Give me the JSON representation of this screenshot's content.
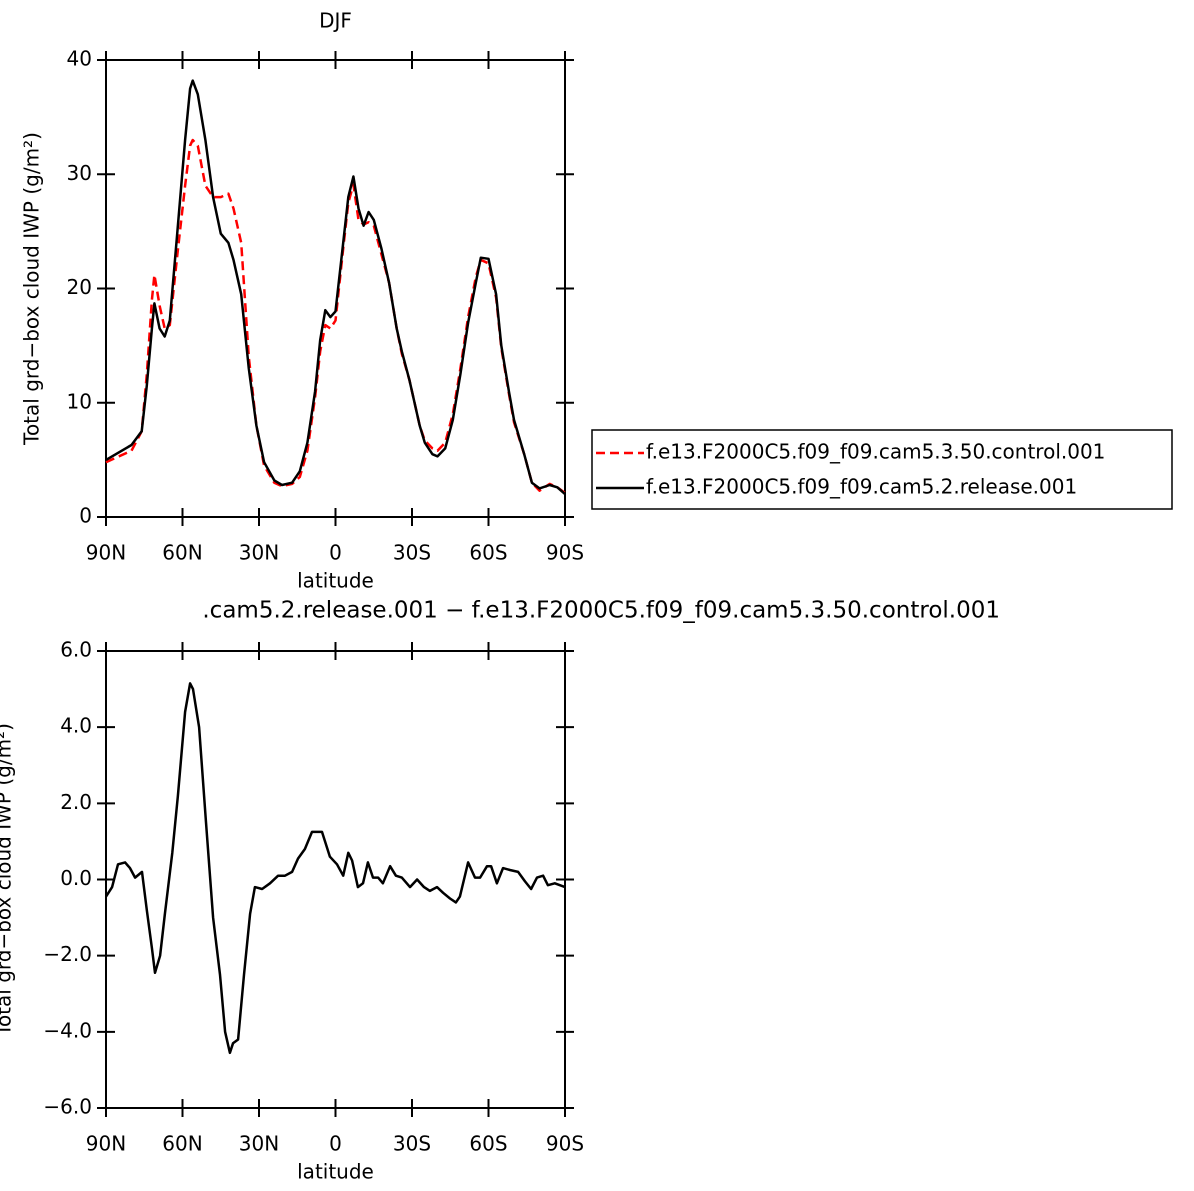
{
  "chart_data": [
    {
      "type": "line",
      "title": "DJF",
      "x_label": "latitude",
      "y_label": "Total grd−box cloud IWP (g/m²)",
      "x": [
        90,
        80,
        76,
        74,
        72,
        71,
        69,
        67,
        65,
        62,
        59,
        57,
        56,
        54,
        51,
        48,
        45,
        42,
        40,
        37,
        34,
        31,
        28,
        24,
        21,
        17,
        14,
        11,
        8,
        6,
        4,
        2,
        0,
        -3,
        -5,
        -7,
        -9,
        -11,
        -13,
        -15,
        -18,
        -21,
        -24,
        -26,
        -29,
        -33,
        -35,
        -38,
        -40,
        -43,
        -46,
        -49,
        -52,
        -55,
        -57,
        -60,
        -63,
        -65,
        -68,
        -70,
        -74,
        -77,
        -80,
        -84,
        -87,
        -90
      ],
      "series": [
        {
          "name": "f.e13.F2000C5.f09_f09.cam5.3.50.control.001",
          "color": "#ff0000",
          "line_style": "dashed",
          "values": [
            4.8,
            5.8,
            7.5,
            12.5,
            19,
            21.2,
            18.5,
            16.5,
            16.8,
            23,
            29,
            32.5,
            33,
            32.5,
            29,
            28,
            28,
            28.3,
            27,
            24,
            14,
            8,
            4.5,
            3.0,
            2.7,
            2.9,
            3.5,
            5.8,
            10.5,
            14.5,
            16.8,
            16.5,
            17.2,
            23.5,
            27.5,
            29.1,
            26,
            25.6,
            25.8,
            25.5,
            23,
            20.5,
            16.5,
            14.3,
            12,
            8,
            6.7,
            6,
            5.8,
            6.5,
            9,
            13,
            17.5,
            21,
            22.5,
            22.2,
            19.2,
            14.8,
            10.8,
            8.3,
            5.5,
            3.0,
            2.3,
            2.9,
            2.6,
            2.1
          ]
        },
        {
          "name": "f.e13.F2000C5.f09_f09.cam5.2.release.001",
          "color": "#000000",
          "line_style": "solid",
          "values": [
            5.0,
            6.3,
            7.5,
            11.5,
            16.5,
            18.7,
            16.5,
            15.8,
            17.2,
            25,
            33,
            37.5,
            38.2,
            37,
            33,
            28,
            24.8,
            24,
            22.5,
            19.5,
            13,
            8,
            4.8,
            3.2,
            2.8,
            3.0,
            4.0,
            6.5,
            11,
            15.5,
            18.1,
            17.5,
            18.0,
            24,
            28,
            29.8,
            27,
            25.5,
            26.7,
            26,
            23.5,
            20.5,
            16.5,
            14.5,
            12,
            8,
            6.5,
            5.5,
            5.3,
            6,
            8.5,
            12.5,
            17,
            20.5,
            22.7,
            22.6,
            19.5,
            15,
            11,
            8.5,
            5.5,
            3.0,
            2.5,
            2.8,
            2.6,
            2.0
          ]
        }
      ],
      "xlim": [
        90,
        -90
      ],
      "xticks": [
        {
          "value": 90,
          "label": "90N"
        },
        {
          "value": 60,
          "label": "60N"
        },
        {
          "value": 30,
          "label": "30N"
        },
        0,
        {
          "value": -30,
          "label": "30S"
        },
        {
          "value": -60,
          "label": "60S"
        },
        {
          "value": -90,
          "label": "90S"
        }
      ],
      "ylim": [
        0,
        40
      ],
      "yticks": [
        0,
        10,
        20,
        30,
        40
      ],
      "legend": "right"
    },
    {
      "type": "line",
      "title": ".cam5.2.release.001 − f.e13.F2000C5.f09_f09.cam5.3.50.control.001",
      "x_label": "latitude",
      "y_label": "Total grd−box cloud IWP (g/m²)",
      "x": [
        90,
        87.6,
        85.3,
        82.5,
        80.6,
        78.6,
        75.9,
        74,
        72,
        70.8,
        68.8,
        66.9,
        64,
        61.8,
        59,
        57,
        55.9,
        53.5,
        50.8,
        48,
        45.3,
        43.3,
        41.4,
        40.2,
        38.2,
        35.9,
        33.5,
        31.6,
        28.8,
        25.7,
        22.5,
        19.8,
        17,
        14.7,
        12,
        9.2,
        5.3,
        2.2,
        -0.6,
        -3,
        -5,
        -6.5,
        -8.8,
        -10.8,
        -12.7,
        -14.7,
        -16.7,
        -18.6,
        -21.4,
        -23.7,
        -26,
        -29.2,
        -32,
        -34.7,
        -37,
        -39.8,
        -42.2,
        -44.9,
        -47.2,
        -48.8,
        -52,
        -54.7,
        -56.7,
        -59.4,
        -61,
        -63.3,
        -65.7,
        -68.4,
        -71.6,
        -74.3,
        -76.7,
        -79,
        -81.4,
        -83.3,
        -86,
        -88,
        -90
      ],
      "series": [
        {
          "color": "#000000",
          "line_style": "solid",
          "values": [
            -0.45,
            -0.2,
            0.4,
            0.45,
            0.3,
            0.05,
            0.2,
            -0.8,
            -1.8,
            -2.45,
            -2.0,
            -0.9,
            0.7,
            2.2,
            4.4,
            5.15,
            5.0,
            4.0,
            1.5,
            -1.0,
            -2.5,
            -4.0,
            -4.55,
            -4.3,
            -4.2,
            -2.5,
            -0.9,
            -0.2,
            -0.25,
            -0.1,
            0.1,
            0.1,
            0.2,
            0.55,
            0.8,
            1.25,
            1.25,
            0.6,
            0.4,
            0.1,
            0.7,
            0.5,
            -0.2,
            -0.1,
            0.45,
            0.05,
            0.05,
            -0.1,
            0.35,
            0.1,
            0.05,
            -0.2,
            0.0,
            -0.2,
            -0.3,
            -0.2,
            -0.35,
            -0.5,
            -0.6,
            -0.45,
            0.45,
            0.05,
            0.05,
            0.35,
            0.35,
            -0.1,
            0.3,
            0.25,
            0.2,
            -0.05,
            -0.25,
            0.05,
            0.1,
            -0.15,
            -0.1,
            -0.15,
            -0.2
          ]
        }
      ],
      "xlim": [
        90,
        -90
      ],
      "xticks": [
        {
          "value": 90,
          "label": "90N"
        },
        {
          "value": 60,
          "label": "60N"
        },
        {
          "value": 30,
          "label": "30N"
        },
        0,
        {
          "value": -30,
          "label": "30S"
        },
        {
          "value": -60,
          "label": "60S"
        },
        {
          "value": -90,
          "label": "90S"
        }
      ],
      "ylim": [
        -6,
        6
      ],
      "yticks": [
        {
          "value": -6,
          "label": "−6.0"
        },
        {
          "value": -4,
          "label": "−4.0"
        },
        {
          "value": -2,
          "label": "−2.0"
        },
        {
          "value": 0,
          "label": "0.0"
        },
        {
          "value": 2,
          "label": "2.0"
        },
        {
          "value": 4,
          "label": "4.0"
        },
        {
          "value": 6,
          "label": "6.0"
        }
      ]
    }
  ]
}
